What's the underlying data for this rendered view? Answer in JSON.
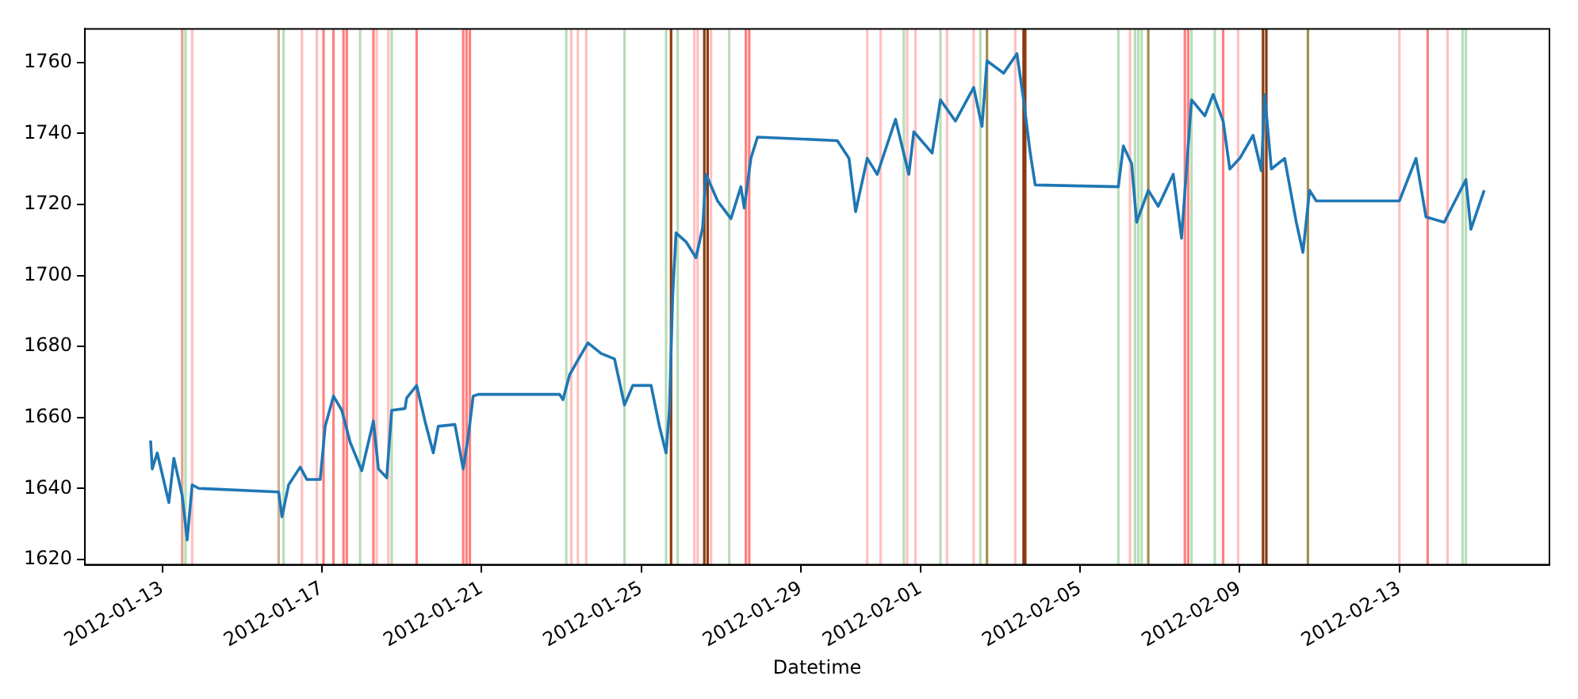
{
  "chart_data": {
    "type": "line",
    "xlabel": "Datetime",
    "x": [
      "2012-01-12T17:00",
      "2012-01-12T18:00",
      "2012-01-12T21:00",
      "2012-01-13T04:00",
      "2012-01-13T07:00",
      "2012-01-13T12:00",
      "2012-01-13T15:00",
      "2012-01-13T18:00",
      "2012-01-13T22:00",
      "2012-01-15T22:00",
      "2012-01-16T00:00",
      "2012-01-16T04:00",
      "2012-01-16T11:00",
      "2012-01-16T15:00",
      "2012-01-16T23:00",
      "2012-01-17T02:00",
      "2012-01-17T07:00",
      "2012-01-17T12:00",
      "2012-01-17T17:00",
      "2012-01-18T00:00",
      "2012-01-18T07:00",
      "2012-01-18T10:00",
      "2012-01-18T15:00",
      "2012-01-18T18:00",
      "2012-01-19T02:00",
      "2012-01-19T03:00",
      "2012-01-19T09:00",
      "2012-01-19T14:00",
      "2012-01-19T19:00",
      "2012-01-19T22:00",
      "2012-01-20T08:00",
      "2012-01-20T13:00",
      "2012-01-20T16:00",
      "2012-01-20T19:00",
      "2012-01-20T22:00",
      "2012-01-22T23:00",
      "2012-01-23T01:00",
      "2012-01-23T05:00",
      "2012-01-23T11:00",
      "2012-01-23T16:00",
      "2012-01-24T00:00",
      "2012-01-24T08:00",
      "2012-01-24T14:00",
      "2012-01-24T19:00",
      "2012-01-25T06:00",
      "2012-01-25T11:00",
      "2012-01-25T15:00",
      "2012-01-25T17:00",
      "2012-01-25T19:00",
      "2012-01-25T21:00",
      "2012-01-26T03:00",
      "2012-01-26T09:00",
      "2012-01-26T13:00",
      "2012-01-26T15:00",
      "2012-01-26T22:00",
      "2012-01-27T06:00",
      "2012-01-27T12:00",
      "2012-01-27T14:00",
      "2012-01-27T18:00",
      "2012-01-27T22:00",
      "2012-01-29T22:00",
      "2012-01-30T05:00",
      "2012-01-30T09:00",
      "2012-01-30T16:00",
      "2012-01-30T22:00",
      "2012-01-31T09:00",
      "2012-01-31T17:00",
      "2012-01-31T20:00",
      "2012-02-01T07:00",
      "2012-02-01T12:00",
      "2012-02-01T21:00",
      "2012-02-02T08:00",
      "2012-02-02T13:00",
      "2012-02-02T16:00",
      "2012-02-03T02:00",
      "2012-02-03T10:00",
      "2012-02-03T14:00",
      "2012-02-03T18:00",
      "2012-02-03T21:00",
      "2012-02-05T23:00",
      "2012-02-06T02:00",
      "2012-02-06T07:00",
      "2012-02-06T10:00",
      "2012-02-06T17:00",
      "2012-02-06T23:00",
      "2012-02-07T08:00",
      "2012-02-07T13:00",
      "2012-02-07T19:00",
      "2012-02-08T03:00",
      "2012-02-08T08:00",
      "2012-02-08T14:00",
      "2012-02-08T18:00",
      "2012-02-09T00:00",
      "2012-02-09T08:00",
      "2012-02-09T13:00",
      "2012-02-09T15:00",
      "2012-02-09T19:00",
      "2012-02-10T03:00",
      "2012-02-10T10:00",
      "2012-02-10T14:00",
      "2012-02-10T18:00",
      "2012-02-10T22:00",
      "2012-02-13T00:00",
      "2012-02-13T10:00",
      "2012-02-13T16:00",
      "2012-02-14T03:00",
      "2012-02-14T16:00",
      "2012-02-14T19:00",
      "2012-02-15T03:00"
    ],
    "series": [
      {
        "color": "#1f77b4",
        "values": [
          1653.5,
          1645.5,
          1650,
          1636,
          1648.5,
          1638,
          1625.5,
          1641,
          1640,
          1639,
          1632,
          1641,
          1646,
          1642.5,
          1642.5,
          1657.5,
          1666,
          1662,
          1653,
          1645,
          1659,
          1645.5,
          1643,
          1662,
          1662.5,
          1665.5,
          1669,
          1659,
          1650,
          1657.5,
          1658,
          1645.5,
          1654.5,
          1666,
          1666.5,
          1666.5,
          1665,
          1672,
          1677,
          1681,
          1678,
          1676.5,
          1663.5,
          1669,
          1669,
          1657.5,
          1650,
          1662,
          1694.5,
          1712,
          1709.5,
          1705,
          1713.5,
          1728.5,
          1721,
          1716,
          1725,
          1719,
          1733,
          1739,
          1738,
          1733,
          1718,
          1733,
          1728.5,
          1744,
          1728.5,
          1740.5,
          1734.5,
          1749.5,
          1743.5,
          1753,
          1742,
          1760.5,
          1757,
          1762.5,
          1749.5,
          1734.5,
          1725.5,
          1725,
          1736.5,
          1731.5,
          1715,
          1724,
          1719.5,
          1728.5,
          1710.5,
          1749.5,
          1745,
          1751,
          1743.5,
          1730,
          1733,
          1739.5,
          1729.5,
          1751,
          1730,
          1733,
          1715,
          1706.5,
          1724,
          1721,
          1721,
          1733,
          1716.5,
          1715,
          1727,
          1713,
          1724
        ]
      }
    ],
    "xlim": [
      "2012-01-11T01:30",
      "2012-02-16T18:15"
    ],
    "xticks": [
      "2012-01-13",
      "2012-01-17",
      "2012-01-21",
      "2012-01-25",
      "2012-01-29",
      "2012-02-01",
      "2012-02-05",
      "2012-02-09",
      "2012-02-13"
    ],
    "ylim": [
      1618.5,
      1769.5
    ],
    "yticks": [
      1620,
      1640,
      1660,
      1680,
      1700,
      1720,
      1740,
      1760
    ],
    "grid": false,
    "legend": false,
    "marker": "none",
    "line_style": "solid",
    "ref_lines": [
      {
        "axis": "x",
        "value": "2012-01-13T12:00",
        "color": "#e8a090"
      },
      {
        "axis": "x",
        "value": "2012-01-13T14:00",
        "color": "#b8ddb8"
      },
      {
        "axis": "x",
        "value": "2012-01-13T18:00",
        "color": "#ffc0c0"
      },
      {
        "axis": "x",
        "value": "2012-01-15T22:00",
        "color": "#d0b090"
      },
      {
        "axis": "x",
        "value": "2012-01-16T01:00",
        "color": "#b8ddb8"
      },
      {
        "axis": "x",
        "value": "2012-01-16T12:00",
        "color": "#ffc0c0"
      },
      {
        "axis": "x",
        "value": "2012-01-16T21:00",
        "color": "#ffc0c0"
      },
      {
        "axis": "x",
        "value": "2012-01-17T01:00",
        "color": "#ff8080"
      },
      {
        "axis": "x",
        "value": "2012-01-17T07:00",
        "color": "#ff8080"
      },
      {
        "axis": "x",
        "value": "2012-01-17T13:00",
        "color": "#ff8080"
      },
      {
        "axis": "x",
        "value": "2012-01-17T15:00",
        "color": "#ff8080"
      },
      {
        "axis": "x",
        "value": "2012-01-17T23:00",
        "color": "#b8ddb8"
      },
      {
        "axis": "x",
        "value": "2012-01-18T07:00",
        "color": "#ff8080"
      },
      {
        "axis": "x",
        "value": "2012-01-18T09:00",
        "color": "#ffc0c0"
      },
      {
        "axis": "x",
        "value": "2012-01-18T16:00",
        "color": "#ffc0c0"
      },
      {
        "axis": "x",
        "value": "2012-01-18T18:00",
        "color": "#b8ddb8"
      },
      {
        "axis": "x",
        "value": "2012-01-19T09:00",
        "color": "#ff8080"
      },
      {
        "axis": "x",
        "value": "2012-01-20T13:00",
        "color": "#ff8080"
      },
      {
        "axis": "x",
        "value": "2012-01-20T15:00",
        "color": "#ff8080"
      },
      {
        "axis": "x",
        "value": "2012-01-20T17:00",
        "color": "#ff8080"
      },
      {
        "axis": "x",
        "value": "2012-01-23T03:00",
        "color": "#b8ddb8"
      },
      {
        "axis": "x",
        "value": "2012-01-23T06:00",
        "color": "#ffc0c0"
      },
      {
        "axis": "x",
        "value": "2012-01-23T10:00",
        "color": "#ffc0c0"
      },
      {
        "axis": "x",
        "value": "2012-01-23T15:00",
        "color": "#ffc0c0"
      },
      {
        "axis": "x",
        "value": "2012-01-24T14:00",
        "color": "#b8ddb8"
      },
      {
        "axis": "x",
        "value": "2012-01-25T15:00",
        "color": "#b8ddb8"
      },
      {
        "axis": "x",
        "value": "2012-01-25T18:00",
        "color": "#8b3a10"
      },
      {
        "axis": "x",
        "value": "2012-01-25T22:00",
        "color": "#b8ddb8"
      },
      {
        "axis": "x",
        "value": "2012-01-26T08:00",
        "color": "#ffc0c0"
      },
      {
        "axis": "x",
        "value": "2012-01-26T10:00",
        "color": "#ffc0c0"
      },
      {
        "axis": "x",
        "value": "2012-01-26T14:00",
        "color": "#8b3a10"
      },
      {
        "axis": "x",
        "value": "2012-01-26T16:00",
        "color": "#8b3a10"
      },
      {
        "axis": "x",
        "value": "2012-01-26T18:00",
        "color": "#ffc0c0"
      },
      {
        "axis": "x",
        "value": "2012-01-27T05:00",
        "color": "#b8ddb8"
      },
      {
        "axis": "x",
        "value": "2012-01-27T15:00",
        "color": "#ff8080"
      },
      {
        "axis": "x",
        "value": "2012-01-27T17:00",
        "color": "#ff8080"
      },
      {
        "axis": "x",
        "value": "2012-01-30T16:00",
        "color": "#ffc0c0"
      },
      {
        "axis": "x",
        "value": "2012-01-31T00:00",
        "color": "#ffc0c0"
      },
      {
        "axis": "x",
        "value": "2012-01-31T14:00",
        "color": "#b8ddb8"
      },
      {
        "axis": "x",
        "value": "2012-01-31T16:00",
        "color": "#ffc0c0"
      },
      {
        "axis": "x",
        "value": "2012-01-31T21:00",
        "color": "#ffc0c0"
      },
      {
        "axis": "x",
        "value": "2012-02-01T12:00",
        "color": "#b8ddb8"
      },
      {
        "axis": "x",
        "value": "2012-02-01T16:00",
        "color": "#ffc0c0"
      },
      {
        "axis": "x",
        "value": "2012-02-02T08:00",
        "color": "#ffc0c0"
      },
      {
        "axis": "x",
        "value": "2012-02-02T12:00",
        "color": "#b8ddb8"
      },
      {
        "axis": "x",
        "value": "2012-02-02T16:00",
        "color": "#a09050"
      },
      {
        "axis": "x",
        "value": "2012-02-03T09:00",
        "color": "#ffc0c0"
      },
      {
        "axis": "x",
        "value": "2012-02-03T14:00",
        "color": "#8b3a10"
      },
      {
        "axis": "x",
        "value": "2012-02-03T15:00",
        "color": "#8b3a10"
      },
      {
        "axis": "x",
        "value": "2012-02-05T23:00",
        "color": "#b8ddb8"
      },
      {
        "axis": "x",
        "value": "2012-02-06T06:00",
        "color": "#ffc0c0"
      },
      {
        "axis": "x",
        "value": "2012-02-06T09:00",
        "color": "#b8ddb8"
      },
      {
        "axis": "x",
        "value": "2012-02-06T11:00",
        "color": "#b8ddb8"
      },
      {
        "axis": "x",
        "value": "2012-02-06T13:00",
        "color": "#b8ddb8"
      },
      {
        "axis": "x",
        "value": "2012-02-06T17:00",
        "color": "#a09050"
      },
      {
        "axis": "x",
        "value": "2012-02-07T15:00",
        "color": "#ff8080"
      },
      {
        "axis": "x",
        "value": "2012-02-07T17:00",
        "color": "#ff8080"
      },
      {
        "axis": "x",
        "value": "2012-02-07T19:00",
        "color": "#b8ddb8"
      },
      {
        "axis": "x",
        "value": "2012-02-08T09:00",
        "color": "#b8ddb8"
      },
      {
        "axis": "x",
        "value": "2012-02-08T14:00",
        "color": "#ff8080"
      },
      {
        "axis": "x",
        "value": "2012-02-08T23:00",
        "color": "#ffc0c0"
      },
      {
        "axis": "x",
        "value": "2012-02-09T14:00",
        "color": "#8b3a10"
      },
      {
        "axis": "x",
        "value": "2012-02-09T16:00",
        "color": "#8b3a10"
      },
      {
        "axis": "x",
        "value": "2012-02-10T17:00",
        "color": "#a09050"
      },
      {
        "axis": "x",
        "value": "2012-02-13T00:00",
        "color": "#ffc0c0"
      },
      {
        "axis": "x",
        "value": "2012-02-13T17:00",
        "color": "#ff8080"
      },
      {
        "axis": "x",
        "value": "2012-02-14T05:00",
        "color": "#ffc0c0"
      },
      {
        "axis": "x",
        "value": "2012-02-14T14:00",
        "color": "#b8ddb8"
      },
      {
        "axis": "x",
        "value": "2012-02-14T16:00",
        "color": "#b8ddb8"
      }
    ]
  }
}
